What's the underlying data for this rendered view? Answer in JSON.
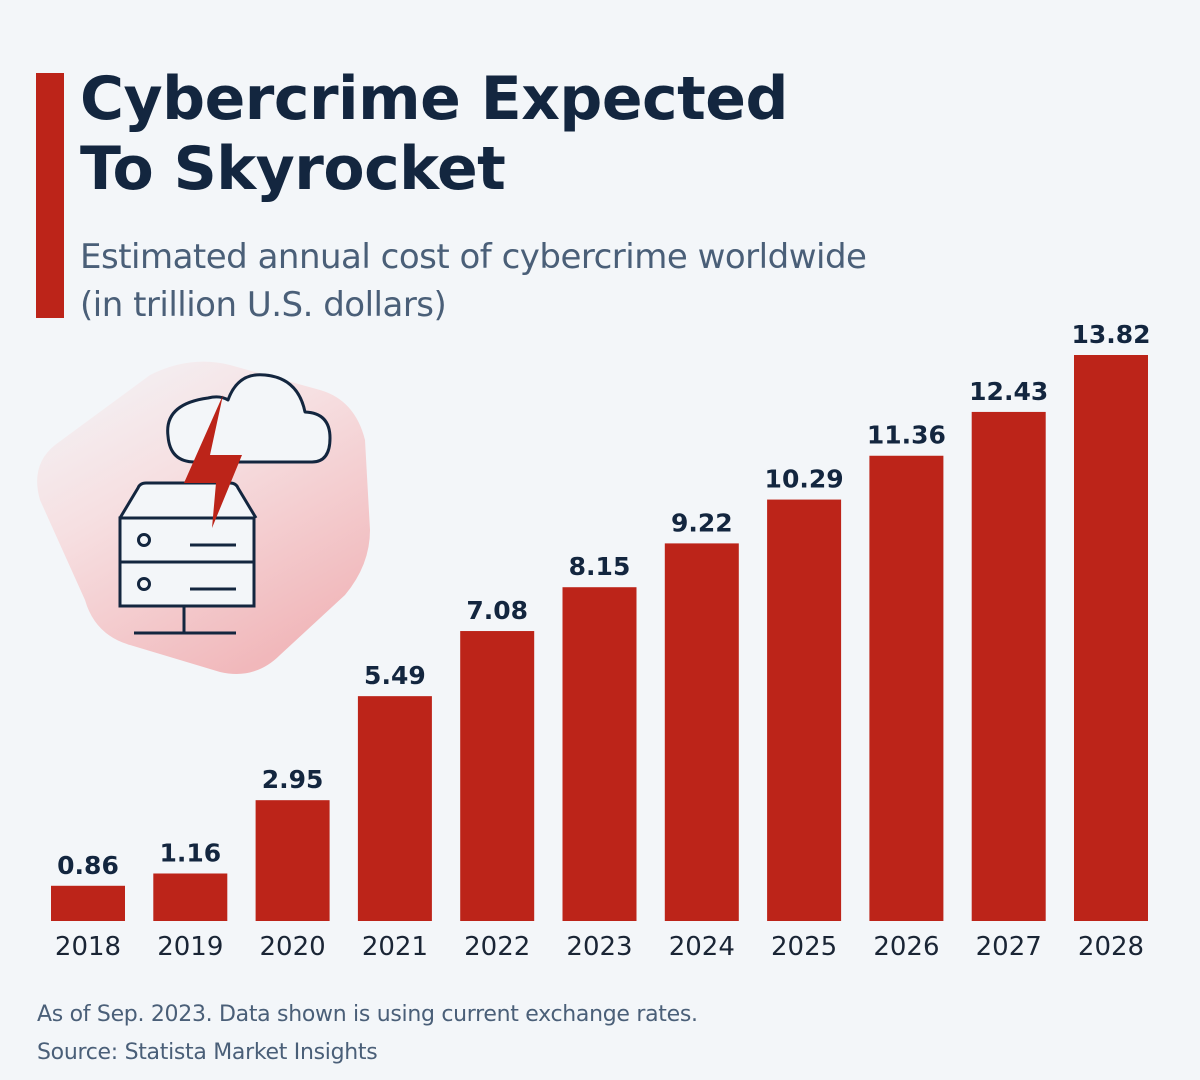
{
  "header": {
    "title_line1": "Cybercrime Expected",
    "title_line2": "To Skyrocket",
    "subtitle_line1": "Estimated annual cost of cybercrime worldwide",
    "subtitle_line2": "(in trillion U.S. dollars)"
  },
  "colors": {
    "accent": "#bc2419",
    "title": "#13263f",
    "subtitle": "#4a5f78",
    "background": "#f3f6f9"
  },
  "illustration": {
    "icons": [
      "cloud-icon",
      "lightning-bolt-icon",
      "server-icon"
    ]
  },
  "footer": {
    "note": "As of Sep. 2023. Data shown is using current exchange rates.",
    "source": "Source: Statista Market Insights"
  },
  "chart_data": {
    "type": "bar",
    "title": "Cybercrime Expected To Skyrocket",
    "subtitle": "Estimated annual cost of cybercrime worldwide (in trillion U.S. dollars)",
    "xlabel": "",
    "ylabel": "in trillion U.S. dollars",
    "categories": [
      "2018",
      "2019",
      "2020",
      "2021",
      "2022",
      "2023",
      "2024",
      "2025",
      "2026",
      "2027",
      "2028"
    ],
    "values": [
      0.86,
      1.16,
      2.95,
      5.49,
      7.08,
      8.15,
      9.22,
      10.29,
      11.36,
      12.43,
      13.82
    ],
    "value_labels": [
      "0.86",
      "1.16",
      "2.95",
      "5.49",
      "7.08",
      "8.15",
      "9.22",
      "10.29",
      "11.36",
      "12.43",
      "13.82"
    ],
    "ylim": [
      0,
      13.82
    ],
    "grid": false,
    "legend": "none"
  }
}
